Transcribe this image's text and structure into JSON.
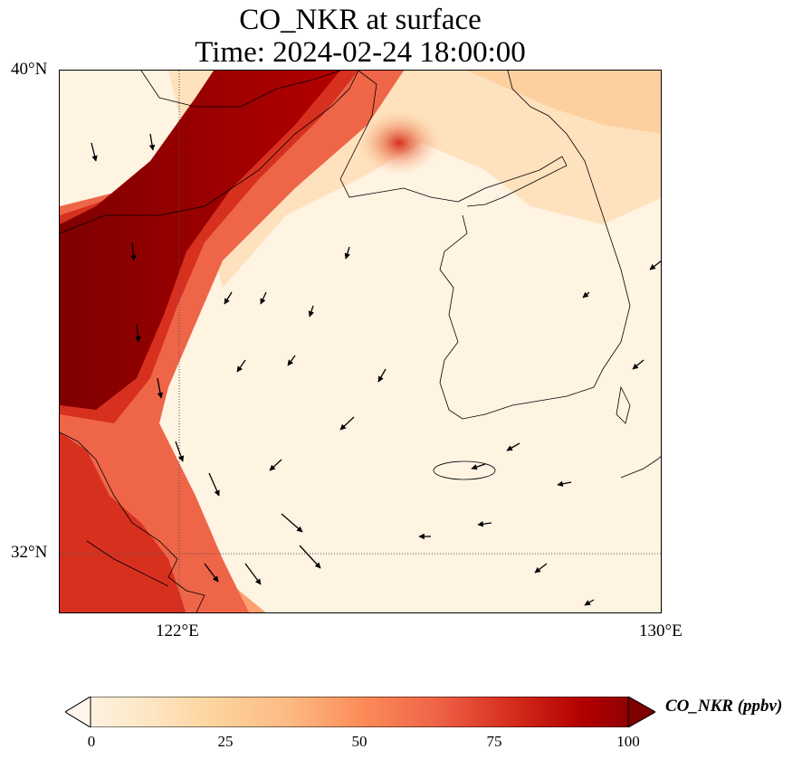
{
  "title_line1": "CO_NKR at surface",
  "title_line2": "Time: 2024-02-24 18:00:00",
  "axes": {
    "lat_ticks": [
      "40°N",
      "32°N"
    ],
    "lon_ticks": [
      "122°E",
      "130°E"
    ]
  },
  "colorbar": {
    "label": "CO_NKR (ppbv)",
    "ticks": [
      "0",
      "25",
      "50",
      "75",
      "100"
    ],
    "colormap": "OrRd",
    "colors": [
      "#fff7ec",
      "#fee8c8",
      "#fdd49e",
      "#fdbb84",
      "#fc8d59",
      "#ef6548",
      "#d7301f",
      "#b30000",
      "#7f0000"
    ],
    "extend": "max"
  },
  "map": {
    "region": "Yellow Sea / Korean Peninsula",
    "grid_color": "#555555",
    "coastline_color": "#000000",
    "wind_vectors": "black arrows"
  }
}
